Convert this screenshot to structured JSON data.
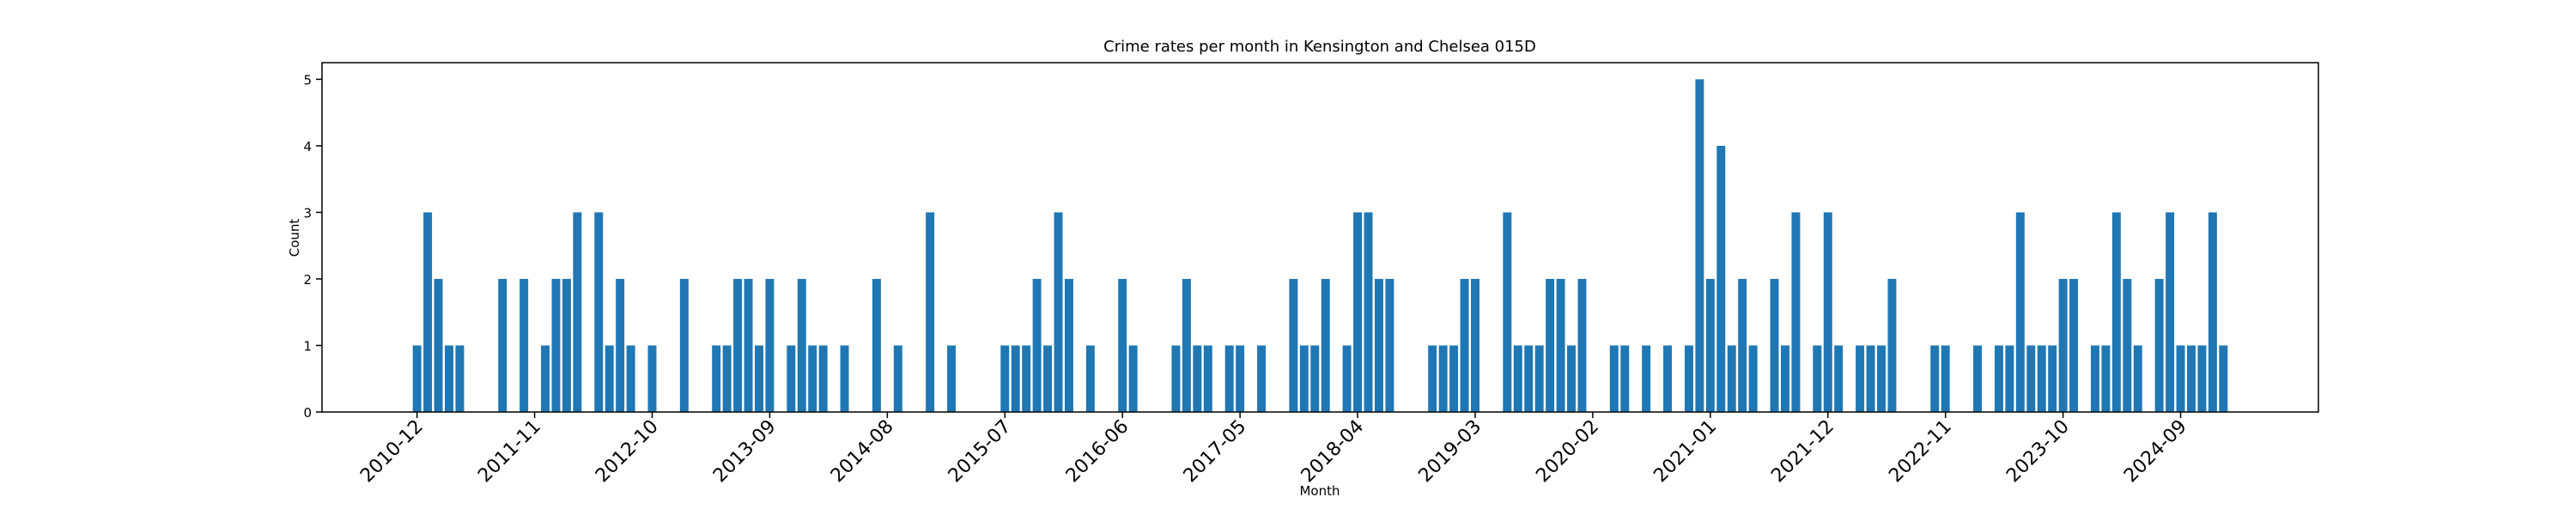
{
  "chart_data": {
    "type": "bar",
    "title": "Crime rates per month in Kensington and Chelsea 015D",
    "x_label": "Month",
    "y_label": "Count",
    "color": "#1f77b4",
    "categories": [
      "2010-12",
      null,
      null,
      null,
      null,
      null,
      null,
      null,
      null,
      null,
      null,
      "2011-11",
      null,
      null,
      null,
      null,
      null,
      null,
      null,
      null,
      null,
      null,
      "2012-10",
      null,
      null,
      null,
      null,
      null,
      null,
      null,
      null,
      null,
      null,
      "2013-09",
      null,
      null,
      null,
      null,
      null,
      null,
      null,
      null,
      null,
      null,
      "2014-08",
      null,
      null,
      null,
      null,
      null,
      null,
      null,
      null,
      null,
      null,
      "2015-07",
      null,
      null,
      null,
      null,
      null,
      null,
      null,
      null,
      null,
      null,
      "2016-06",
      null,
      null,
      null,
      null,
      null,
      null,
      null,
      null,
      null,
      null,
      "2017-05",
      null,
      null,
      null,
      null,
      null,
      null,
      null,
      null,
      null,
      null,
      "2018-04",
      null,
      null,
      null,
      null,
      null,
      null,
      null,
      null,
      null,
      null,
      "2019-03",
      null,
      null,
      null,
      null,
      null,
      null,
      null,
      null,
      null,
      null,
      "2020-02",
      null,
      null,
      null,
      null,
      null,
      null,
      null,
      null,
      null,
      null,
      "2021-01",
      null,
      null,
      null,
      null,
      null,
      null,
      null,
      null,
      null,
      null,
      "2021-12",
      null,
      null,
      null,
      null,
      null,
      null,
      null,
      null,
      null,
      null,
      "2022-11",
      null,
      null,
      null,
      null,
      null,
      null,
      null,
      null,
      null,
      null,
      "2023-10",
      null,
      null,
      null,
      null,
      null,
      null,
      null,
      null,
      null,
      null,
      "2024-09",
      null,
      null,
      null,
      null
    ],
    "values": [
      1,
      3,
      2,
      1,
      1,
      0,
      0,
      0,
      2,
      0,
      2,
      0,
      1,
      2,
      2,
      3,
      0,
      3,
      1,
      2,
      1,
      0,
      1,
      0,
      0,
      2,
      0,
      0,
      1,
      1,
      2,
      2,
      1,
      2,
      0,
      1,
      2,
      1,
      1,
      0,
      1,
      0,
      0,
      2,
      0,
      1,
      0,
      0,
      3,
      0,
      1,
      0,
      0,
      0,
      0,
      1,
      1,
      1,
      2,
      1,
      3,
      2,
      0,
      1,
      0,
      0,
      2,
      1,
      0,
      0,
      0,
      1,
      2,
      1,
      1,
      0,
      1,
      1,
      0,
      1,
      0,
      0,
      2,
      1,
      1,
      2,
      0,
      1,
      3,
      3,
      2,
      2,
      0,
      0,
      0,
      1,
      1,
      1,
      2,
      2,
      0,
      0,
      3,
      1,
      1,
      1,
      2,
      2,
      1,
      2,
      0,
      0,
      1,
      1,
      0,
      1,
      0,
      1,
      0,
      1,
      5,
      2,
      4,
      1,
      2,
      1,
      0,
      2,
      1,
      3,
      0,
      1,
      3,
      1,
      0,
      1,
      1,
      1,
      2,
      0,
      0,
      0,
      1,
      1,
      0,
      0,
      1,
      0,
      1,
      1,
      3,
      1,
      1,
      1,
      2,
      2,
      0,
      1,
      1,
      3,
      2,
      1,
      0,
      2,
      3,
      1,
      1,
      1,
      3,
      1
    ],
    "ylim": [
      0,
      5.25
    ],
    "yticks": [
      0,
      1,
      2,
      3,
      4,
      5
    ]
  }
}
